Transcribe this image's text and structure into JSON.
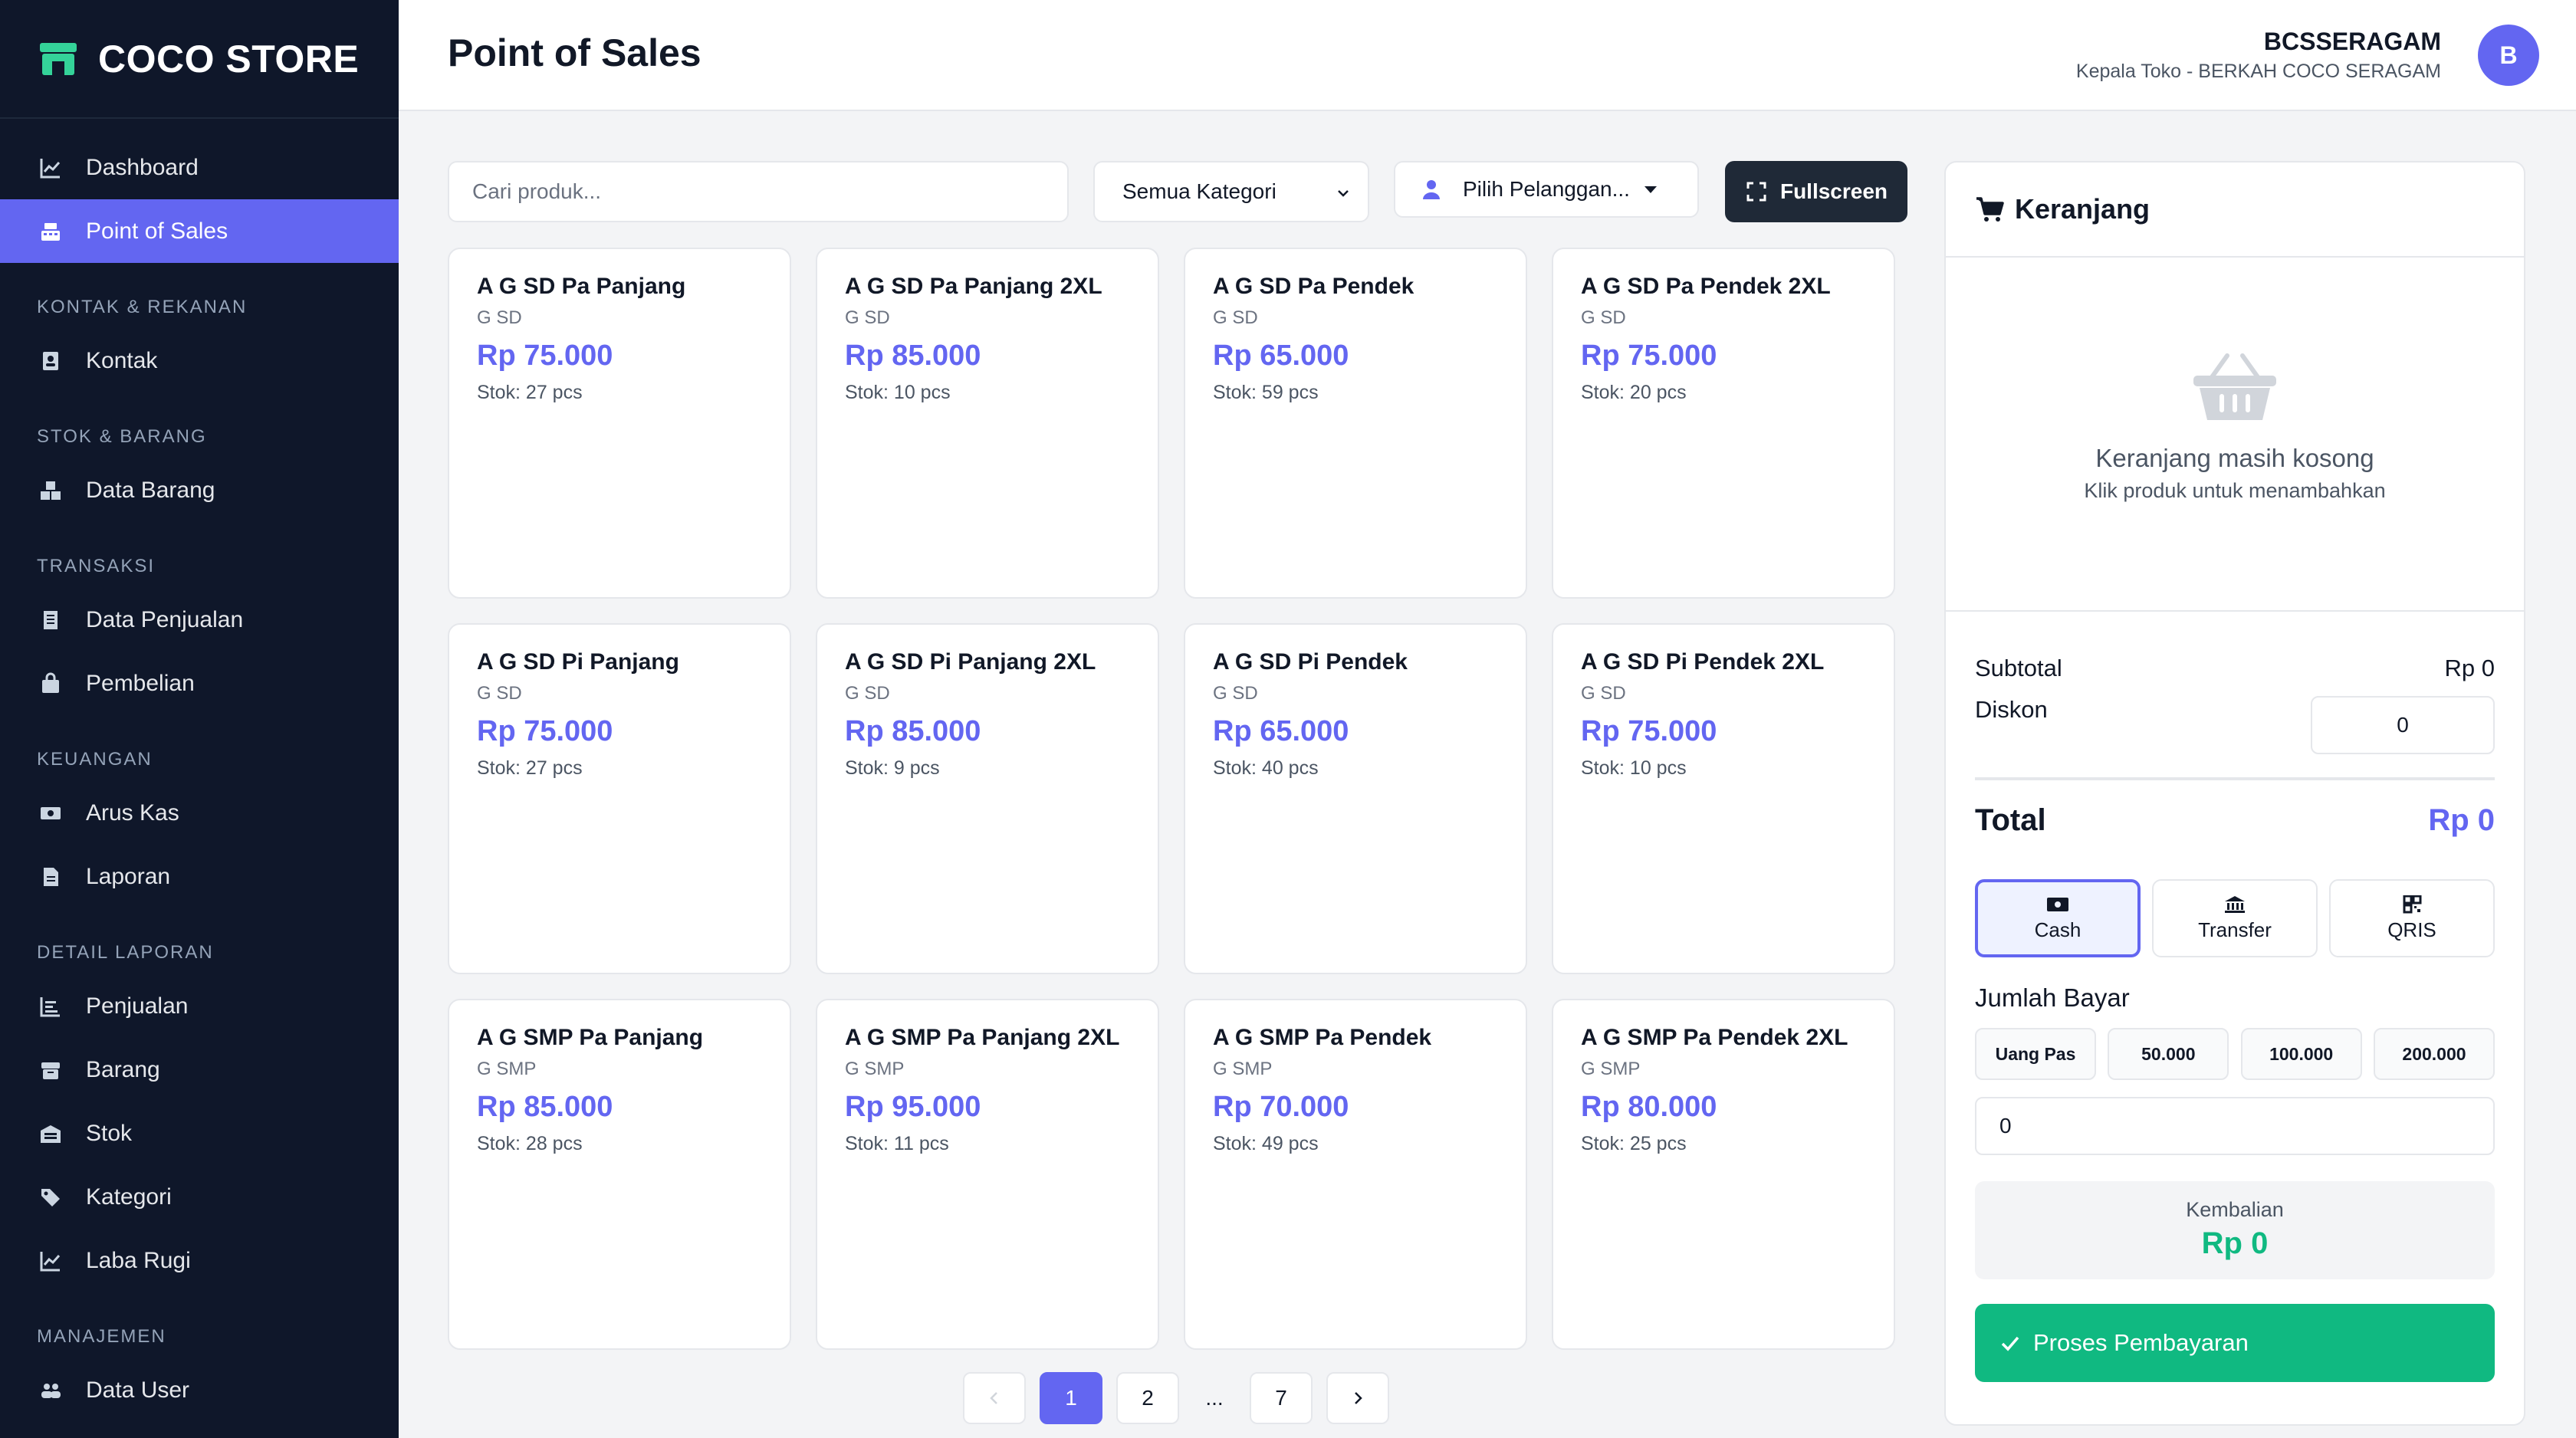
{
  "brand": {
    "title": "COCO STORE",
    "icon": "store-icon"
  },
  "sidebar": {
    "top": [
      {
        "label": "Dashboard",
        "icon": "chart-line-icon"
      },
      {
        "label": "Point of Sales",
        "icon": "cash-register-icon",
        "active": true
      }
    ],
    "sections": [
      {
        "title": "KONTAK & REKANAN",
        "items": [
          {
            "label": "Kontak",
            "icon": "contact-book-icon"
          }
        ]
      },
      {
        "title": "STOK & BARANG",
        "items": [
          {
            "label": "Data Barang",
            "icon": "boxes-icon"
          }
        ]
      },
      {
        "title": "TRANSAKSI",
        "items": [
          {
            "label": "Data Penjualan",
            "icon": "receipt-icon"
          },
          {
            "label": "Pembelian",
            "icon": "shopping-bag-icon"
          }
        ]
      },
      {
        "title": "KEUANGAN",
        "items": [
          {
            "label": "Arus Kas",
            "icon": "money-bill-icon"
          },
          {
            "label": "Laporan",
            "icon": "file-text-icon"
          }
        ]
      },
      {
        "title": "DETAIL LAPORAN",
        "items": [
          {
            "label": "Penjualan",
            "icon": "list-chart-icon"
          },
          {
            "label": "Barang",
            "icon": "box-icon"
          },
          {
            "label": "Stok",
            "icon": "warehouse-icon"
          },
          {
            "label": "Kategori",
            "icon": "tags-icon"
          },
          {
            "label": "Laba Rugi",
            "icon": "chart-line-icon"
          }
        ]
      },
      {
        "title": "MANAJEMEN",
        "items": [
          {
            "label": "Data User",
            "icon": "users-icon"
          }
        ]
      }
    ]
  },
  "header": {
    "title": "Point of Sales",
    "user_name": "BCSSERAGAM",
    "user_role": "Kepala Toko - BERKAH COCO SERAGAM",
    "avatar_letter": "B"
  },
  "toolbar": {
    "search_placeholder": "Cari produk...",
    "category_label": "Semua Kategori",
    "customer_label": "Pilih Pelanggan...",
    "fullscreen_label": "Fullscreen"
  },
  "products": [
    {
      "name": "A G SD Pa Panjang",
      "category": "G SD",
      "price": "Rp 75.000",
      "stock": "Stok: 27 pcs"
    },
    {
      "name": "A G SD Pa Panjang 2XL",
      "category": "G SD",
      "price": "Rp 85.000",
      "stock": "Stok: 10 pcs"
    },
    {
      "name": "A G SD Pa Pendek",
      "category": "G SD",
      "price": "Rp 65.000",
      "stock": "Stok: 59 pcs"
    },
    {
      "name": "A G SD Pa Pendek 2XL",
      "category": "G SD",
      "price": "Rp 75.000",
      "stock": "Stok: 20 pcs"
    },
    {
      "name": "A G SD Pi Panjang",
      "category": "G SD",
      "price": "Rp 75.000",
      "stock": "Stok: 27 pcs"
    },
    {
      "name": "A G SD Pi Panjang 2XL",
      "category": "G SD",
      "price": "Rp 85.000",
      "stock": "Stok: 9 pcs"
    },
    {
      "name": "A G SD Pi Pendek",
      "category": "G SD",
      "price": "Rp 65.000",
      "stock": "Stok: 40 pcs"
    },
    {
      "name": "A G SD Pi Pendek 2XL",
      "category": "G SD",
      "price": "Rp 75.000",
      "stock": "Stok: 10 pcs"
    },
    {
      "name": "A G SMP Pa Panjang",
      "category": "G SMP",
      "price": "Rp 85.000",
      "stock": "Stok: 28 pcs"
    },
    {
      "name": "A G SMP Pa Panjang 2XL",
      "category": "G SMP",
      "price": "Rp 95.000",
      "stock": "Stok: 11 pcs"
    },
    {
      "name": "A G SMP Pa Pendek",
      "category": "G SMP",
      "price": "Rp 70.000",
      "stock": "Stok: 49 pcs"
    },
    {
      "name": "A G SMP Pa Pendek 2XL",
      "category": "G SMP",
      "price": "Rp 80.000",
      "stock": "Stok: 25 pcs"
    }
  ],
  "pagination": {
    "pages": [
      "1",
      "2",
      "...",
      "7"
    ],
    "current": "1"
  },
  "cart": {
    "title": "Keranjang",
    "empty_title": "Keranjang masih kosong",
    "empty_subtitle": "Klik produk untuk menambahkan",
    "subtotal_label": "Subtotal",
    "subtotal_value": "Rp 0",
    "discount_label": "Diskon",
    "discount_value": "0",
    "total_label": "Total",
    "total_value": "Rp 0",
    "methods": [
      {
        "label": "Cash",
        "icon": "money-bill-icon",
        "active": true
      },
      {
        "label": "Transfer",
        "icon": "bank-icon",
        "active": false
      },
      {
        "label": "QRIS",
        "icon": "qr-code-icon",
        "active": false
      }
    ],
    "pay_label": "Jumlah Bayar",
    "quick_amounts": [
      "Uang Pas",
      "50.000",
      "100.000",
      "200.000"
    ],
    "pay_value": "0",
    "change_label": "Kembalian",
    "change_value": "Rp 0",
    "process_label": "Proses Pembayaran"
  },
  "colors": {
    "accent": "#6366f1",
    "sidebar_bg": "#0f172a",
    "success": "#10b981",
    "dark_button": "#1f2937"
  }
}
